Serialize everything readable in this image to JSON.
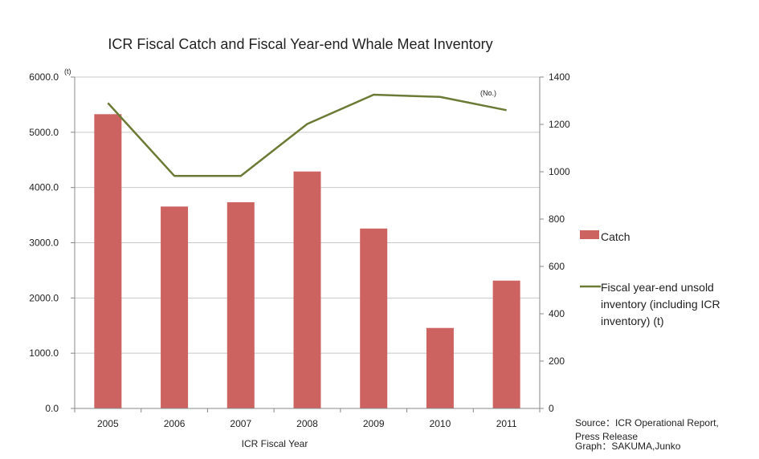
{
  "chart_data": {
    "type": "bar",
    "title": "ICR Fiscal Catch and Fiscal Year-end Whale Meat Inventory",
    "xlabel": "ICR Fiscal Year",
    "categories": [
      "2005",
      "2006",
      "2007",
      "2008",
      "2009",
      "2010",
      "2011"
    ],
    "left_axis": {
      "unit": "(t)",
      "ylim": [
        0,
        6000
      ],
      "ticks": [
        "0.0",
        "1000.0",
        "2000.0",
        "3000.0",
        "4000.0",
        "5000.0",
        "6000.0"
      ]
    },
    "right_axis": {
      "unit": "(No.)",
      "ylim": [
        0,
        1400
      ],
      "ticks": [
        "0",
        "200",
        "400",
        "600",
        "800",
        "1000",
        "1200",
        "1400"
      ]
    },
    "series": [
      {
        "name": "Catch",
        "kind": "bar",
        "axis": "right",
        "color": "#cd6360",
        "values": [
          1243,
          853,
          871,
          1001,
          760,
          340,
          540
        ]
      },
      {
        "name": "Fiscal year-end unsold inventory (including ICR inventory) (t)",
        "name_lines": [
          "Fiscal year-end unsold",
          "inventory (including ICR",
          "inventory) (t)"
        ],
        "kind": "line",
        "axis": "left",
        "color": "#6b7a35",
        "values": [
          5530,
          4210,
          4210,
          5150,
          5680,
          5640,
          5400
        ]
      }
    ],
    "grid": true,
    "legend_position": "right",
    "source_lines": [
      "Source：ICR Operational Report,",
      "Press Release",
      "Graph：SAKUMA,Junko"
    ]
  }
}
